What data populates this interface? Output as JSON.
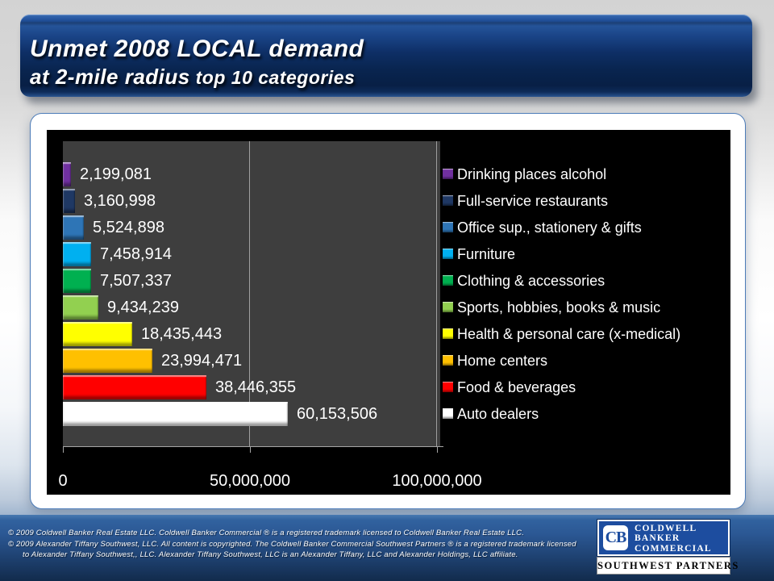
{
  "slide": {
    "title_line1": "Unmet 2008 LOCAL demand",
    "title_line2_main": "at 2-mile radius",
    "title_line2_small": " top 10 categories"
  },
  "chart_data": {
    "type": "bar",
    "orientation": "horizontal",
    "title": "Unmet 2008 LOCAL demand at 2-mile radius top 10 categories",
    "xlabel": "",
    "ylabel": "",
    "xlim": [
      0,
      100000000
    ],
    "grid": "vertical gridlines at x ticks",
    "legend_position": "right",
    "plot_bg": "#3E3E3E",
    "chart_bg": "#000000",
    "x_ticks": [
      {
        "value": 0,
        "label": "0"
      },
      {
        "value": 50000000,
        "label": "50,000,000"
      },
      {
        "value": 100000000,
        "label": "100,000,000"
      }
    ],
    "series": [
      {
        "category": "Drinking places alcohol",
        "value": 2199081,
        "label": "2,199,081",
        "color": "#7030A0"
      },
      {
        "category": "Full-service restaurants",
        "value": 3160998,
        "label": "3,160,998",
        "color": "#1F3864"
      },
      {
        "category": "Office sup., stationery & gifts",
        "value": 5524898,
        "label": "5,524,898",
        "color": "#2E75B6"
      },
      {
        "category": "Furniture",
        "value": 7458914,
        "label": "7,458,914",
        "color": "#00B0F0"
      },
      {
        "category": "Clothing & accessories",
        "value": 7507337,
        "label": "7,507,337",
        "color": "#00B050"
      },
      {
        "category": "Sports, hobbies, books & music",
        "value": 9434239,
        "label": "9,434,239",
        "color": "#92D050"
      },
      {
        "category": "Health & personal care (x-medical)",
        "value": 18435443,
        "label": "18,435,443",
        "color": "#FFFF00"
      },
      {
        "category": "Home centers",
        "value": 23994471,
        "label": "23,994,471",
        "color": "#FFC000"
      },
      {
        "category": "Food & beverages",
        "value": 38446355,
        "label": "38,446,355",
        "color": "#FF0000"
      },
      {
        "category": "Auto dealers",
        "value": 60153506,
        "label": "60,153,506",
        "color": "#FFFFFF"
      }
    ]
  },
  "footer": {
    "line1": "©  2009 Coldwell Banker Real Estate  LLC. Coldwell Banker Commercial ® is a registered trademark licensed to  Coldwell Banker Real Estate LLC.",
    "line2": "© 2009  Alexander Tiffany Southwest, LLC. All content is copyrighted. The Coldwell Banker Commercial Southwest Partners ® is a registered trademark licensed",
    "line3": "to  Alexander Tiffany Southwest,, LLC.   Alexander Tiffany Southwest, LLC is an Alexander Tiffany, LLC and Alexander Holdings, LLC affiliate."
  },
  "logo": {
    "monogram": "CB",
    "line1": "COLDWELL",
    "line2": "BANKER",
    "line3": "COMMERCIAL",
    "subtitle": "SOUTHWEST PARTNERS"
  }
}
